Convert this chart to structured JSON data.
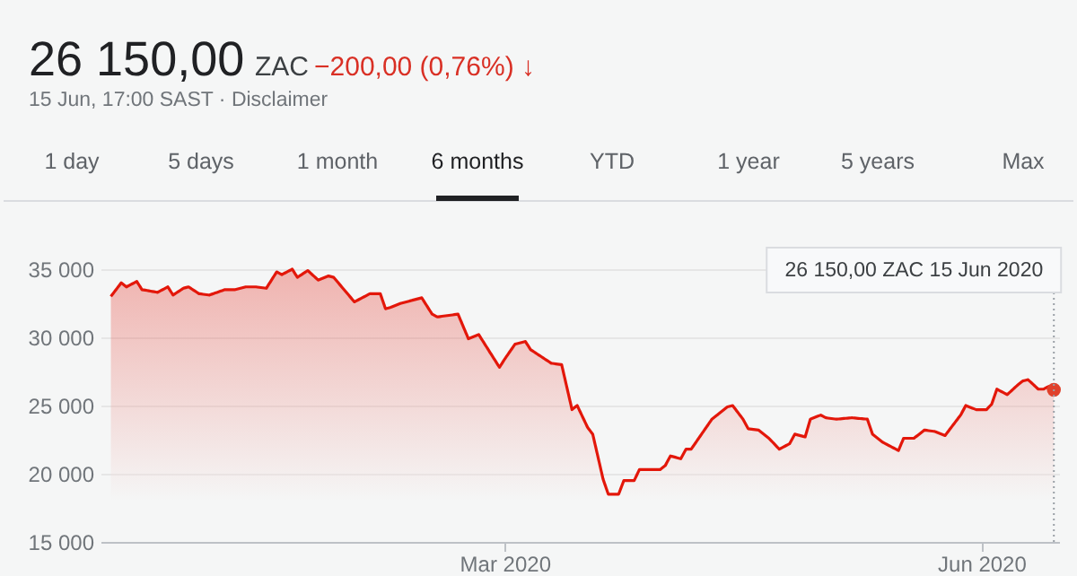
{
  "chart_data": {
    "type": "area",
    "title": "26 150,00",
    "subtitle": "15 Jun, 17:00 SAST · Disclaimer",
    "annotations": [
      "ZAC",
      "−200,00 (0,76%) ↓",
      "1 day",
      "5 days",
      "1 month",
      "6 months",
      "YTD",
      "1 year",
      "5 years",
      "Max"
    ],
    "x": [
      "2019-12-16",
      "2019-12-18",
      "2019-12-19",
      "2019-12-21",
      "2019-12-22",
      "2019-12-25",
      "2019-12-27",
      "2019-12-28",
      "2019-12-30",
      "2019-12-31",
      "2020-01-02",
      "2020-01-04",
      "2020-01-07",
      "2020-01-09",
      "2020-01-11",
      "2020-01-13",
      "2020-01-15",
      "2020-01-17",
      "2020-01-18",
      "2020-01-20",
      "2020-01-21",
      "2020-01-23",
      "2020-01-25",
      "2020-01-27",
      "2020-01-28",
      "2020-02-01",
      "2020-02-04",
      "2020-02-06",
      "2020-02-07",
      "2020-02-08",
      "2020-02-10",
      "2020-02-12",
      "2020-02-14",
      "2020-02-16",
      "2020-02-17",
      "2020-02-21",
      "2020-02-23",
      "2020-02-25",
      "2020-02-27",
      "2020-02-29",
      "2020-03-01",
      "2020-03-03",
      "2020-03-05",
      "2020-03-06",
      "2020-03-08",
      "2020-03-10",
      "2020-03-12",
      "2020-03-14",
      "2020-03-15",
      "2020-03-17",
      "2020-03-18",
      "2020-03-20",
      "2020-03-21",
      "2020-03-23",
      "2020-03-24",
      "2020-03-26",
      "2020-03-27",
      "2020-03-29",
      "2020-03-31",
      "2020-04-01",
      "2020-04-02",
      "2020-04-04",
      "2020-04-05",
      "2020-04-06",
      "2020-04-10",
      "2020-04-11",
      "2020-04-13",
      "2020-04-14",
      "2020-04-16",
      "2020-04-17",
      "2020-04-19",
      "2020-04-21",
      "2020-04-23",
      "2020-04-25",
      "2020-04-26",
      "2020-04-28",
      "2020-04-29",
      "2020-05-01",
      "2020-05-02",
      "2020-05-04",
      "2020-05-07",
      "2020-05-10",
      "2020-05-11",
      "2020-05-13",
      "2020-05-14",
      "2020-05-16",
      "2020-05-17",
      "2020-05-19",
      "2020-05-21",
      "2020-05-23",
      "2020-05-25",
      "2020-05-28",
      "2020-05-29",
      "2020-05-31",
      "2020-06-02",
      "2020-06-03",
      "2020-06-04",
      "2020-06-06",
      "2020-06-08",
      "2020-06-09",
      "2020-06-10",
      "2020-06-12",
      "2020-06-13",
      "2020-06-14",
      "2020-06-15"
    ],
    "series": [
      {
        "color": "#e3170a",
        "values": [
          33000,
          34000,
          33700,
          34100,
          33500,
          33300,
          33700,
          33100,
          33600,
          33700,
          33200,
          33100,
          33500,
          33500,
          33700,
          33700,
          33600,
          34800,
          34600,
          35000,
          34400,
          34900,
          34200,
          34500,
          34400,
          32600,
          33200,
          33200,
          32100,
          32200,
          32500,
          32700,
          32900,
          31700,
          31500,
          31700,
          29900,
          30200,
          29000,
          27800,
          28400,
          29500,
          29700,
          29100,
          28600,
          28100,
          28000,
          24700,
          25000,
          23400,
          22900,
          19600,
          18500,
          18500,
          19500,
          19500,
          20300,
          20300,
          20300,
          20600,
          21300,
          21100,
          21800,
          21800,
          24000,
          24300,
          24900,
          25000,
          24000,
          23300,
          23200,
          22600,
          21800,
          22200,
          22900,
          22700,
          24000,
          24300,
          24100,
          24000,
          24100,
          24000,
          22900,
          22300,
          22100,
          21700,
          22600,
          22600,
          23200,
          23100,
          22800,
          24300,
          25000,
          24700,
          24700,
          25100,
          26200,
          25800,
          26500,
          26800,
          26900,
          26200,
          26200,
          26400,
          26150
        ]
      },
      {
        "type": "scatter",
        "marker": "circle",
        "color": "#e0412b",
        "x": [
          "2020-06-15"
        ],
        "values": [
          26150
        ]
      }
    ],
    "xlim": [
      "2019-12-14",
      "2020-06-16"
    ],
    "ylim": [
      15000,
      35000
    ],
    "xticks": [
      {
        "value": "2020-03-01",
        "label": "Mar 2020"
      },
      {
        "value": "2020-06-01",
        "label": "Jun 2020"
      }
    ],
    "yticks": [
      {
        "value": 15000,
        "label": "15 000"
      },
      {
        "value": 20000,
        "label": "20 000"
      },
      {
        "value": 25000,
        "label": "25 000"
      },
      {
        "value": 30000,
        "label": "30 000"
      },
      {
        "value": 35000,
        "label": "35 000"
      }
    ],
    "grid": "y",
    "ref_lines": [
      {
        "axis": "x",
        "value": "2020-06-15",
        "label": "26 150,00 ZAC   15 Jun 2020",
        "line_style": "dotted",
        "color": "#9aa0a6"
      }
    ]
  }
}
